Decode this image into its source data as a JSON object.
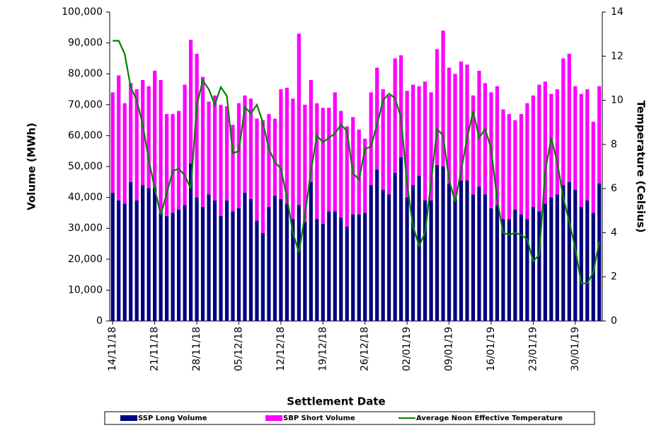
{
  "chart_data": {
    "type": "bar-line",
    "x_label": "Settlement Date",
    "y_label": "Volume (MWh)",
    "y2_label": "Temperature (Celsius)",
    "categories": [
      "14/11/18",
      null,
      null,
      null,
      null,
      null,
      null,
      "21/11/18",
      null,
      null,
      null,
      null,
      null,
      null,
      "28/11/18",
      null,
      null,
      null,
      null,
      null,
      null,
      "05/12/18",
      null,
      null,
      null,
      null,
      null,
      null,
      "12/12/18",
      null,
      null,
      null,
      null,
      null,
      null,
      "19/12/18",
      null,
      null,
      null,
      null,
      null,
      null,
      "26/12/18",
      null,
      null,
      null,
      null,
      null,
      null,
      "02/01/19",
      null,
      null,
      null,
      null,
      null,
      null,
      "09/01/19",
      null,
      null,
      null,
      null,
      null,
      null,
      "16/01/19",
      null,
      null,
      null,
      null,
      null,
      null,
      "23/01/19",
      null,
      null,
      null,
      null,
      null,
      null,
      "30/01/19",
      null,
      null,
      null,
      null
    ],
    "series": [
      {
        "name": "SSP Long Volume",
        "type": "bar",
        "stack": true,
        "color": "#000080",
        "values": [
          41500,
          39000,
          38000,
          45000,
          39000,
          44000,
          43000,
          43000,
          35000,
          34000,
          35000,
          36000,
          37500,
          51000,
          40000,
          37000,
          41000,
          39000,
          34000,
          39000,
          35500,
          36500,
          41500,
          39500,
          32500,
          28500,
          37000,
          40500,
          39500,
          38000,
          33000,
          37500,
          32000,
          45000,
          33000,
          31500,
          35500,
          35500,
          33500,
          30500,
          34500,
          34500,
          35000,
          44000,
          49000,
          42500,
          41000,
          48000,
          53000,
          40000,
          44000,
          47000,
          39000,
          39000,
          50500,
          50000,
          44500,
          39500,
          45500,
          45500,
          41000,
          43500,
          41000,
          36500,
          37500,
          33000,
          33000,
          36000,
          34500,
          33000,
          37000,
          35500,
          38000,
          40000,
          41000,
          44000,
          45000,
          42500,
          37000,
          39000,
          35000,
          44500
        ]
      },
      {
        "name": "SBP Short Volume",
        "type": "bar",
        "stack": true,
        "color": "#ff00ff",
        "values": [
          32500,
          40500,
          32500,
          32000,
          36000,
          34000,
          33000,
          38000,
          43000,
          33000,
          32000,
          32000,
          39000,
          40000,
          46500,
          42000,
          30000,
          34000,
          36000,
          30500,
          28000,
          34000,
          31500,
          32500,
          33000,
          36500,
          30000,
          25000,
          35500,
          37500,
          39000,
          55500,
          38000,
          33000,
          37500,
          37500,
          33500,
          38500,
          34500,
          32500,
          31500,
          27500,
          24000,
          30000,
          33000,
          32500,
          32000,
          37000,
          33000,
          34500,
          32500,
          29000,
          38500,
          35000,
          37500,
          44000,
          37500,
          40500,
          38500,
          37500,
          32000,
          37500,
          36000,
          37500,
          38500,
          35500,
          34000,
          29000,
          32500,
          37500,
          36000,
          41000,
          39500,
          33500,
          34000,
          41000,
          41500,
          33500,
          36500,
          36000,
          29500,
          31500
        ]
      },
      {
        "name": "Average Noon Effective Temperature",
        "type": "line",
        "axis": "y2",
        "color": "#008000",
        "values": [
          12.7,
          12.7,
          12.1,
          10.6,
          10,
          8.9,
          7.3,
          6,
          4.8,
          5.8,
          6.8,
          6.9,
          6.6,
          6,
          9.8,
          10.9,
          10.5,
          9.8,
          10.6,
          10.2,
          7.6,
          7.7,
          9.7,
          9.4,
          9.8,
          9,
          7.8,
          7.2,
          6.9,
          5.6,
          4,
          3.1,
          4.8,
          6.8,
          8.4,
          8.1,
          8.3,
          8.5,
          8.9,
          8.6,
          6.7,
          6.4,
          7.8,
          7.9,
          8.9,
          10,
          10.3,
          10.1,
          9.2,
          6.2,
          4.3,
          3.4,
          4,
          6.3,
          8.7,
          8.4,
          6.4,
          5.4,
          6.8,
          8.3,
          9.5,
          8.3,
          8.7,
          7.8,
          5.5,
          4,
          3.9,
          4,
          3.9,
          3.7,
          2.7,
          3,
          6.8,
          8.3,
          7.2,
          5.6,
          4.5,
          3.3,
          1.7,
          1.7,
          2.2,
          3.6
        ]
      }
    ],
    "ylim": [
      0,
      100000
    ],
    "yticks": [
      0,
      {
        "value": 10000,
        "label": "10,000"
      },
      {
        "value": 20000,
        "label": "20,000"
      },
      {
        "value": 30000,
        "label": "30,000"
      },
      {
        "value": 40000,
        "label": "40,000"
      },
      {
        "value": 50000,
        "label": "50,000"
      },
      {
        "value": 60000,
        "label": "60,000"
      },
      {
        "value": 70000,
        "label": "70,000"
      },
      {
        "value": 80000,
        "label": "80,000"
      },
      {
        "value": 90000,
        "label": "90,000"
      },
      {
        "value": 100000,
        "label": "100,000"
      }
    ],
    "y2lim": [
      0,
      14
    ],
    "y2ticks": [
      0,
      2,
      4,
      6,
      8,
      10,
      12,
      14
    ],
    "legend": "bottom",
    "grid": false
  }
}
